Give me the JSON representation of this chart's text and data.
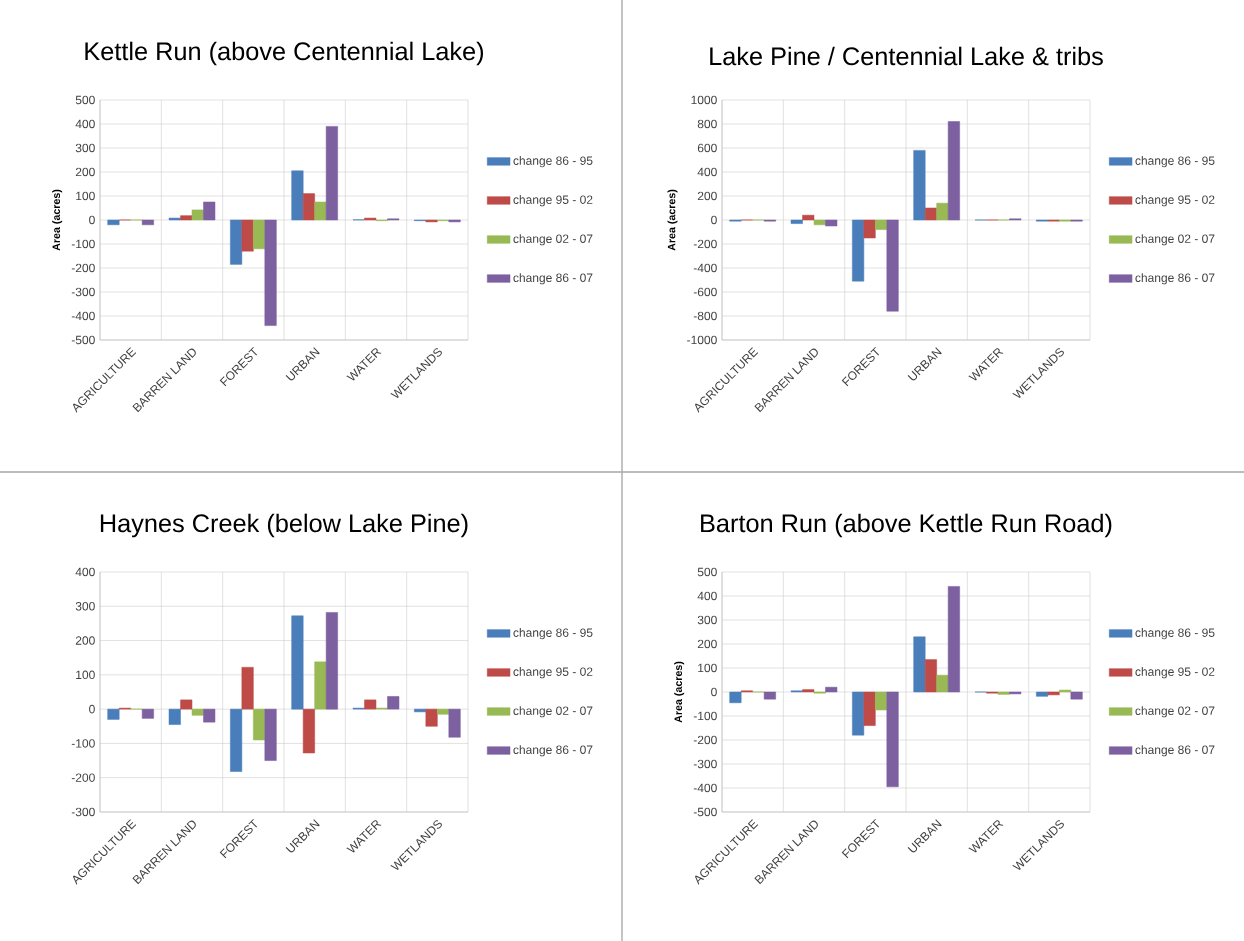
{
  "chart_data": [
    {
      "type": "bar",
      "title": "Kettle Run (above Centennial Lake)",
      "ylabel": "Area (acres)",
      "categories": [
        "AGRICULTURE",
        "BARREN LAND",
        "FOREST",
        "URBAN",
        "WATER",
        "WETLANDS"
      ],
      "series": [
        {
          "name": "change 86 - 95",
          "color": "#4a7ebb",
          "values": [
            -20,
            8,
            -185,
            205,
            1,
            -3
          ]
        },
        {
          "name": "change 95 - 02",
          "color": "#be4b48",
          "values": [
            0,
            18,
            -130,
            110,
            8,
            -8
          ]
        },
        {
          "name": "change 02 - 07",
          "color": "#98b954",
          "values": [
            0,
            42,
            -120,
            75,
            -3,
            -3
          ]
        },
        {
          "name": "change 86 - 07",
          "color": "#7d60a0",
          "values": [
            -20,
            75,
            -440,
            390,
            5,
            -8
          ]
        }
      ],
      "ylim": [
        -500,
        500
      ],
      "yticks": [
        -500,
        -400,
        -300,
        -200,
        -100,
        0,
        100,
        200,
        300,
        400,
        500
      ],
      "grid": true,
      "legend": "right"
    },
    {
      "type": "bar",
      "title": "Lake Pine / Centennial Lake & tribs",
      "ylabel": "Area (acres)",
      "categories": [
        "AGRICULTURE",
        "BARREN LAND",
        "FOREST",
        "URBAN",
        "WATER",
        "WETLANDS"
      ],
      "series": [
        {
          "name": "change 86 - 95",
          "color": "#4a7ebb",
          "values": [
            -10,
            -30,
            -510,
            580,
            0,
            -10
          ]
        },
        {
          "name": "change 95 - 02",
          "color": "#be4b48",
          "values": [
            0,
            40,
            -150,
            100,
            0,
            -10
          ]
        },
        {
          "name": "change 02 - 07",
          "color": "#98b954",
          "values": [
            0,
            -40,
            -80,
            140,
            0,
            -10
          ]
        },
        {
          "name": "change 86 - 07",
          "color": "#7d60a0",
          "values": [
            -10,
            -50,
            -760,
            820,
            10,
            -10
          ]
        }
      ],
      "ylim": [
        -1000,
        1000
      ],
      "yticks": [
        -1000,
        -800,
        -600,
        -400,
        -200,
        0,
        200,
        400,
        600,
        800,
        1000
      ],
      "grid": true,
      "legend": "right"
    },
    {
      "type": "bar",
      "title": "Haynes Creek (below Lake Pine)",
      "categories": [
        "AGRICULTURE",
        "BARREN LAND",
        "FOREST",
        "URBAN",
        "WATER",
        "WETLANDS"
      ],
      "series": [
        {
          "name": "change 86 - 95",
          "color": "#4a7ebb",
          "values": [
            -30,
            -45,
            -182,
            272,
            3,
            -8
          ]
        },
        {
          "name": "change 95 - 02",
          "color": "#be4b48",
          "values": [
            3,
            27,
            122,
            -128,
            27,
            -50
          ]
        },
        {
          "name": "change 02 - 07",
          "color": "#98b954",
          "values": [
            0,
            -18,
            -90,
            138,
            3,
            -15
          ]
        },
        {
          "name": "change 86 - 07",
          "color": "#7d60a0",
          "values": [
            -27,
            -38,
            -150,
            282,
            37,
            -82
          ]
        }
      ],
      "ylim": [
        -300,
        400
      ],
      "yticks": [
        -300,
        -200,
        -100,
        0,
        100,
        200,
        300,
        400
      ],
      "grid": true,
      "legend": "right"
    },
    {
      "type": "bar",
      "title": "Barton Run (above Kettle Run Road)",
      "ylabel": "Area (acres)",
      "categories": [
        "AGRICULTURE",
        "BARREN LAND",
        "FOREST",
        "URBAN",
        "WATER",
        "WETLANDS"
      ],
      "series": [
        {
          "name": "change 86 - 95",
          "color": "#4a7ebb",
          "values": [
            -45,
            5,
            -180,
            230,
            0,
            -18
          ]
        },
        {
          "name": "change 95 - 02",
          "color": "#be4b48",
          "values": [
            5,
            10,
            -140,
            135,
            -5,
            -12
          ]
        },
        {
          "name": "change 02 - 07",
          "color": "#98b954",
          "values": [
            0,
            -5,
            -75,
            70,
            -10,
            8
          ]
        },
        {
          "name": "change 86 - 07",
          "color": "#7d60a0",
          "values": [
            -30,
            20,
            -395,
            440,
            -8,
            -30
          ]
        }
      ],
      "ylim": [
        -500,
        500
      ],
      "yticks": [
        -500,
        -400,
        -300,
        -200,
        -100,
        0,
        100,
        200,
        300,
        400,
        500
      ],
      "grid": true,
      "legend": "right"
    }
  ]
}
